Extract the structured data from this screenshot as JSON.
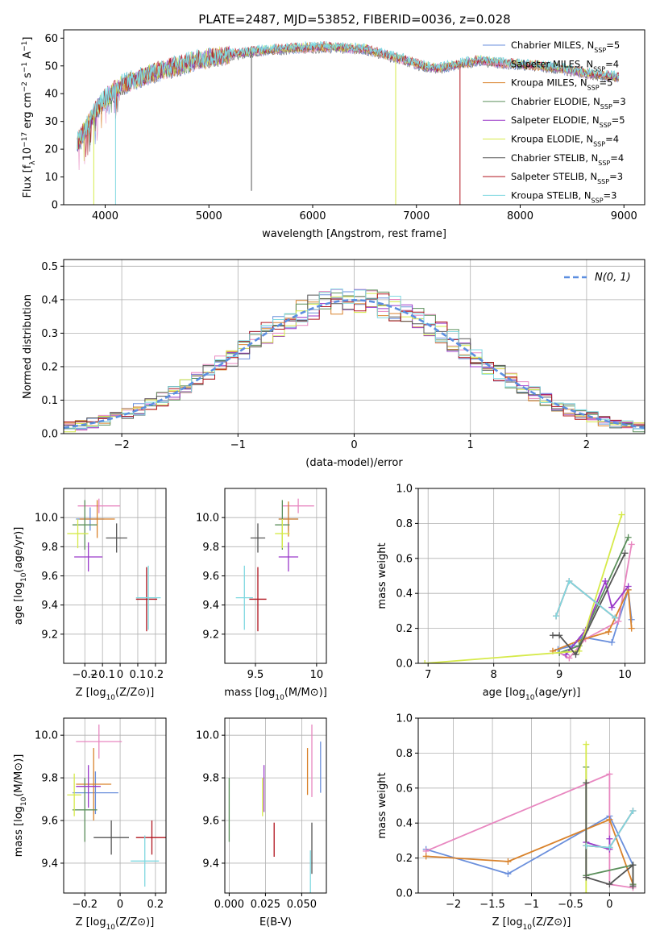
{
  "title": "PLATE=2487, MJD=53852, FIBERID=0036, z=0.028",
  "models": [
    {
      "name": "Chabrier MILES, N$_{SSP}$=5",
      "label": "Chabrier MILES, N",
      "nssp": "=5",
      "color": "#6a8fdc"
    },
    {
      "name": "Salpeter MILES, N$_{SSP}$=4",
      "label": "Salpeter MILES, N",
      "nssp": "=4",
      "color": "#e887c0"
    },
    {
      "name": "Kroupa MILES, N$_{SSP}$=5",
      "label": "Kroupa MILES, N",
      "nssp": "=5",
      "color": "#d9822b"
    },
    {
      "name": "Chabrier ELODIE, N$_{SSP}$=3",
      "label": "Chabrier ELODIE, N",
      "nssp": "=3",
      "color": "#5b8f5b"
    },
    {
      "name": "Salpeter ELODIE, N$_{SSP}$=5",
      "label": "Salpeter ELODIE, N",
      "nssp": "=5",
      "color": "#9a39c9"
    },
    {
      "name": "Kroupa ELODIE, N$_{SSP}$=4",
      "label": "Kroupa ELODIE, N",
      "nssp": "=4",
      "color": "#d6ea4a"
    },
    {
      "name": "Chabrier STELIB, N$_{SSP}$=4",
      "label": "Chabrier STELIB, N",
      "nssp": "=4",
      "color": "#555555"
    },
    {
      "name": "Salpeter STELIB, N$_{SSP}$=3",
      "label": "Salpeter STELIB, N",
      "nssp": "=3",
      "color": "#b0141e"
    },
    {
      "name": "Kroupa STELIB, N$_{SSP}$=3",
      "label": "Kroupa STELIB, N",
      "nssp": "=3",
      "color": "#7fd8e0"
    }
  ],
  "chart_data": [
    {
      "id": "spectrum",
      "type": "line",
      "xlabel": "wavelength [Angstrom, rest frame]",
      "ylabel": "Flux [f$_\\lambda$10$^{-17}$ erg cm$^{-2}$ s$^{-1}$ A$^{-1}$]",
      "xlim": [
        3600,
        9200
      ],
      "ylim": [
        0,
        63
      ],
      "xticks": [
        4000,
        5000,
        6000,
        7000,
        8000,
        9000
      ],
      "yticks": [
        0,
        10,
        20,
        30,
        40,
        50,
        60
      ],
      "continuum": {
        "x": [
          3730,
          3850,
          3950,
          4050,
          4150,
          4300,
          4500,
          4700,
          4900,
          5100,
          5300,
          5500,
          5700,
          5900,
          6100,
          6300,
          6500,
          6700,
          6900,
          7050,
          7200,
          7400,
          7600,
          7800,
          8000,
          8200,
          8400,
          8600,
          8800,
          8950
        ],
        "y": [
          22,
          30,
          36,
          40,
          43,
          45,
          48,
          50,
          52,
          53.5,
          54.5,
          55.5,
          56,
          56.5,
          56.8,
          56.5,
          56,
          54,
          52,
          50,
          49,
          50.5,
          52,
          51,
          50.5,
          50,
          49,
          47.5,
          46.5,
          46
        ]
      },
      "spikes": [
        {
          "x": 3890,
          "y": 0
        },
        {
          "x": 4100,
          "y": 0
        },
        {
          "x": 5410,
          "y": 5
        },
        {
          "x": 6800,
          "y": 0
        },
        {
          "x": 7420,
          "y": 0
        }
      ]
    },
    {
      "id": "residuals",
      "type": "histogram",
      "xlabel": "(data-model)/error",
      "ylabel": "Normed distribution",
      "xlim": [
        -2.5,
        2.5
      ],
      "ylim": [
        0,
        0.52
      ],
      "xticks": [
        -2,
        -1,
        0,
        1,
        2
      ],
      "yticks": [
        0.0,
        0.1,
        0.2,
        0.3,
        0.4,
        0.5
      ],
      "bin_width": 0.1,
      "reference": {
        "name": "$\\mathcal{N}(0,1)$",
        "legend_text": "N(0, 1)",
        "mean": 0,
        "sigma": 1
      }
    },
    {
      "id": "age-vs-z",
      "type": "errorbar",
      "xlabel": "Z [log$_{10}$(Z/Z$_\\odot$)]",
      "ylabel": "age  [log$_{10}$(age/yr)]",
      "xlim": [
        -0.32,
        0.26
      ],
      "ylim": [
        9.0,
        10.2
      ],
      "xticks": [
        -0.2,
        -0.1,
        0.0,
        0.1,
        0.2
      ],
      "yticks": [
        9.2,
        9.4,
        9.6,
        9.8,
        10.0
      ],
      "points": [
        {
          "x": -0.17,
          "y": 9.99,
          "xerr": 0.08,
          "yerr": 0.08
        },
        {
          "x": -0.12,
          "y": 10.08,
          "xerr": 0.12,
          "yerr": 0.05
        },
        {
          "x": -0.13,
          "y": 9.99,
          "xerr": 0.1,
          "yerr": 0.13
        },
        {
          "x": -0.2,
          "y": 9.95,
          "xerr": 0.07,
          "yerr": 0.17
        },
        {
          "x": -0.18,
          "y": 9.73,
          "xerr": 0.08,
          "yerr": 0.1
        },
        {
          "x": -0.24,
          "y": 9.89,
          "xerr": 0.06,
          "yerr": 0.1
        },
        {
          "x": -0.02,
          "y": 9.86,
          "xerr": 0.06,
          "yerr": 0.1
        },
        {
          "x": 0.15,
          "y": 9.44,
          "xerr": 0.06,
          "yerr": 0.22
        },
        {
          "x": 0.16,
          "y": 9.45,
          "xerr": 0.07,
          "yerr": 0.22
        }
      ]
    },
    {
      "id": "age-vs-mass",
      "type": "errorbar",
      "xlabel": "mass [log$_{10}$(M/M$_\\odot$)]",
      "ylabel": "",
      "xlim": [
        9.25,
        10.08
      ],
      "ylim": [
        9.0,
        10.2
      ],
      "xticks": [
        9.5,
        10.0
      ],
      "yticks": [
        9.2,
        9.4,
        9.6,
        9.8,
        10.0
      ],
      "points": [
        {
          "x": 9.77,
          "y": 9.99,
          "xerr": 0.08,
          "yerr": 0.08
        },
        {
          "x": 9.85,
          "y": 10.08,
          "xerr": 0.13,
          "yerr": 0.05
        },
        {
          "x": 9.77,
          "y": 9.99,
          "xerr": 0.08,
          "yerr": 0.12
        },
        {
          "x": 9.72,
          "y": 9.95,
          "xerr": 0.06,
          "yerr": 0.17
        },
        {
          "x": 9.77,
          "y": 9.73,
          "xerr": 0.08,
          "yerr": 0.1
        },
        {
          "x": 9.72,
          "y": 9.89,
          "xerr": 0.06,
          "yerr": 0.1
        },
        {
          "x": 9.52,
          "y": 9.86,
          "xerr": 0.06,
          "yerr": 0.1
        },
        {
          "x": 9.52,
          "y": 9.44,
          "xerr": 0.07,
          "yerr": 0.22
        },
        {
          "x": 9.41,
          "y": 9.45,
          "xerr": 0.07,
          "yerr": 0.22
        }
      ]
    },
    {
      "id": "weight-vs-age",
      "type": "line",
      "xlabel": "age  [log$_{10}$(age/yr)]",
      "ylabel": "mass weight",
      "xlim": [
        6.85,
        10.3
      ],
      "ylim": [
        0,
        1.0
      ],
      "xticks": [
        7,
        8,
        9,
        10
      ],
      "yticks": [
        0.0,
        0.2,
        0.4,
        0.6,
        0.8,
        1.0
      ],
      "series": [
        {
          "x": [
            8.98,
            9.2,
            9.35,
            9.8,
            10.05,
            10.1
          ],
          "y": [
            0.08,
            0.1,
            0.15,
            0.12,
            0.42,
            0.25
          ]
        },
        {
          "x": [
            9.0,
            9.15,
            9.4,
            9.9,
            10.1
          ],
          "y": [
            0.06,
            0.03,
            0.14,
            0.24,
            0.68
          ]
        },
        {
          "x": [
            8.9,
            9.3,
            9.75,
            10.05,
            10.1
          ],
          "y": [
            0.07,
            0.13,
            0.18,
            0.42,
            0.2
          ]
        },
        {
          "x": [
            9.0,
            9.3,
            10.05
          ],
          "y": [
            0.06,
            0.1,
            0.72
          ]
        },
        {
          "x": [
            9.1,
            9.4,
            9.7,
            9.8,
            10.05
          ],
          "y": [
            0.05,
            0.19,
            0.47,
            0.32,
            0.44
          ]
        },
        {
          "x": [
            6.95,
            9.3,
            9.95
          ],
          "y": [
            0.0,
            0.07,
            0.85
          ]
        },
        {
          "x": [
            8.9,
            9.0,
            9.25,
            10.0
          ],
          "y": [
            0.16,
            0.16,
            0.05,
            0.63
          ]
        },
        {
          "x": [
            8.95,
            9.15,
            9.85
          ],
          "y": [
            0.27,
            0.47,
            0.26
          ]
        },
        {
          "x": [
            8.95,
            9.15,
            9.85
          ],
          "y": [
            0.27,
            0.47,
            0.26
          ]
        }
      ]
    },
    {
      "id": "mass-vs-z",
      "type": "errorbar",
      "xlabel": "Z [log$_{10}$(Z/Z$_\\odot$)]",
      "ylabel": "mass [log$_{10}$(M/M$_\\odot$)]",
      "xlim": [
        -0.32,
        0.26
      ],
      "ylim": [
        9.26,
        10.08
      ],
      "xticks": [
        -0.2,
        0.0,
        0.2
      ],
      "yticks": [
        9.4,
        9.6,
        9.8,
        10.0
      ],
      "points": [
        {
          "x": -0.14,
          "y": 9.73,
          "xerr": 0.13,
          "yerr": 0.1
        },
        {
          "x": -0.12,
          "y": 9.97,
          "xerr": 0.13,
          "yerr": 0.08
        },
        {
          "x": -0.15,
          "y": 9.77,
          "xerr": 0.1,
          "yerr": 0.17
        },
        {
          "x": -0.2,
          "y": 9.65,
          "xerr": 0.07,
          "yerr": 0.15
        },
        {
          "x": -0.18,
          "y": 9.76,
          "xerr": 0.07,
          "yerr": 0.1
        },
        {
          "x": -0.26,
          "y": 9.72,
          "xerr": 0.04,
          "yerr": 0.1
        },
        {
          "x": -0.05,
          "y": 9.52,
          "xerr": 0.1,
          "yerr": 0.08
        },
        {
          "x": 0.18,
          "y": 9.52,
          "xerr": 0.09,
          "yerr": 0.08
        },
        {
          "x": 0.14,
          "y": 9.41,
          "xerr": 0.08,
          "yerr": 0.12
        }
      ]
    },
    {
      "id": "mass-vs-ebv",
      "type": "errorbar",
      "xlabel": "E(B-V)",
      "ylabel": "",
      "xlim": [
        -0.003,
        0.067
      ],
      "ylim": [
        9.26,
        10.08
      ],
      "xticks": [
        0.0,
        0.025,
        0.05
      ],
      "xtick_labels": [
        "0.000",
        "0.025",
        "0.050"
      ],
      "yticks": [
        9.4,
        9.6,
        9.8,
        10.0
      ],
      "points": [
        {
          "x": 0.063,
          "y": 9.85,
          "xerr": 0,
          "yerr": 0.12
        },
        {
          "x": 0.057,
          "y": 9.88,
          "xerr": 0,
          "yerr": 0.17
        },
        {
          "x": 0.054,
          "y": 9.83,
          "xerr": 0,
          "yerr": 0.11
        },
        {
          "x": 0.0,
          "y": 9.65,
          "xerr": 0,
          "yerr": 0.15
        },
        {
          "x": 0.024,
          "y": 9.75,
          "xerr": 0,
          "yerr": 0.11
        },
        {
          "x": 0.023,
          "y": 9.71,
          "xerr": 0,
          "yerr": 0.09
        },
        {
          "x": 0.057,
          "y": 9.47,
          "xerr": 0,
          "yerr": 0.12
        },
        {
          "x": 0.031,
          "y": 9.51,
          "xerr": 0,
          "yerr": 0.08
        },
        {
          "x": 0.056,
          "y": 9.36,
          "xerr": 0,
          "yerr": 0.1
        }
      ]
    },
    {
      "id": "weight-vs-z",
      "type": "line",
      "xlabel": "Z [log$_{10}$(Z/Z$_\\odot$)]",
      "ylabel": "mass weight",
      "xlim": [
        -2.45,
        0.45
      ],
      "ylim": [
        0,
        1.0
      ],
      "xticks": [
        -2.0,
        -1.5,
        -1.0,
        -0.5,
        0.0
      ],
      "yticks": [
        0.0,
        0.2,
        0.4,
        0.6,
        0.8,
        1.0
      ],
      "series": [
        {
          "x": [
            -2.35,
            -1.3,
            0.0,
            0.3
          ],
          "y": [
            0.25,
            0.11,
            0.44,
            0.16
          ]
        },
        {
          "x": [
            -2.35,
            0.0,
            0.0,
            0.3
          ],
          "y": [
            0.24,
            0.68,
            0.05,
            0.03
          ]
        },
        {
          "x": [
            -2.35,
            -1.3,
            0.0,
            0.3
          ],
          "y": [
            0.21,
            0.18,
            0.42,
            0.05
          ]
        },
        {
          "x": [
            -0.3,
            -0.3,
            0.3,
            0.3
          ],
          "y": [
            0.72,
            0.1,
            0.16,
            0.05
          ]
        },
        {
          "x": [
            -0.3,
            0.0,
            0.0
          ],
          "y": [
            0.29,
            0.25,
            0.31
          ]
        },
        {
          "x": [
            -0.3,
            -0.3
          ],
          "y": [
            0.85,
            0.0
          ]
        },
        {
          "x": [
            -0.3,
            -0.3,
            0.0,
            0.3,
            0.3
          ],
          "y": [
            0.63,
            0.09,
            0.05,
            0.16,
            0.04
          ]
        },
        {
          "x": [
            -0.3,
            0.0,
            0.3
          ],
          "y": [
            0.27,
            0.26,
            0.47
          ]
        },
        {
          "x": [
            -0.3,
            0.0,
            0.3
          ],
          "y": [
            0.27,
            0.26,
            0.47
          ]
        }
      ]
    }
  ]
}
